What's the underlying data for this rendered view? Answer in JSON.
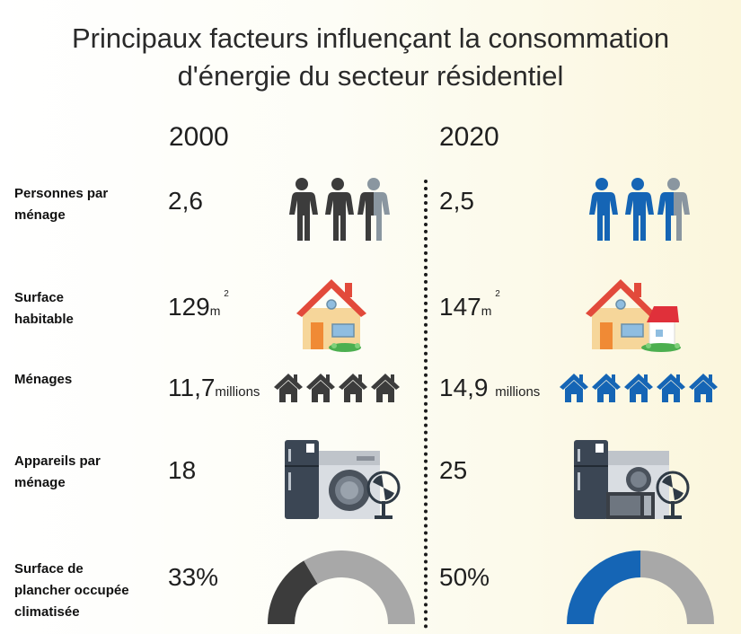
{
  "title": {
    "line1": "Principaux facteurs influençant la consommation",
    "line2": "d'énergie du secteur résidentiel"
  },
  "years": [
    "2000",
    "2020"
  ],
  "rows": {
    "persons": {
      "label_line1": "Personnes  par",
      "label_line2": "ménage",
      "v2000": "2,6",
      "v2020": "2,5",
      "icon": "people-icon"
    },
    "surface": {
      "label_line1": "Surface",
      "label_line2": "habitable",
      "v2000": "129",
      "v2020": "147",
      "unit": "m",
      "unit_exp": "2",
      "icon": "house-icon"
    },
    "households": {
      "label": "Ménages",
      "v2000": "11,7",
      "v2020": "14,9",
      "unit": "millions",
      "icon": "small-house-icon",
      "houses_2000": 4,
      "houses_2020": 5
    },
    "appliances": {
      "label_line1": "Appareils par",
      "label_line2": "ménage",
      "v2000": "18",
      "v2020": "25",
      "icon": "appliances-icon"
    },
    "aircon": {
      "label_line1": "Surface de",
      "label_line2": "plancher occupée",
      "label_line3": "climatisée",
      "v2000": "33%",
      "v2020": "50%",
      "fraction_2000": 0.33,
      "fraction_2020": 0.5,
      "icon": "half-donut-gauge"
    }
  },
  "colors": {
    "dark": "#3c3c3c",
    "grey": "#a8a8a8",
    "blue": "#1565b5",
    "blue_light": "#5a8fc4",
    "grey_light": "#8a96a0"
  }
}
